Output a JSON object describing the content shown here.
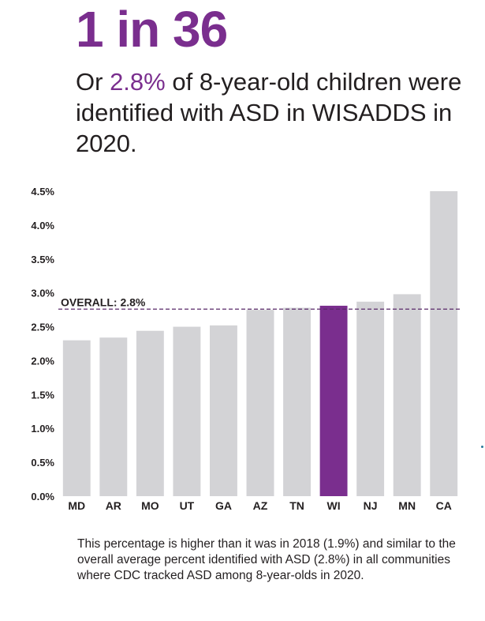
{
  "headline": "1 in 36",
  "subhead": {
    "prefix": "Or ",
    "highlight": "2.8%",
    "suffix": " of 8-year-old children were identified with ASD in WISADDS in 2020."
  },
  "colors": {
    "accent": "#7a2e8e",
    "bar": "#d3d3d6",
    "highlight_bar": "#7a2e8e",
    "text": "#231f20"
  },
  "chart_data": {
    "type": "bar",
    "categories": [
      "MD",
      "AR",
      "MO",
      "UT",
      "GA",
      "AZ",
      "TN",
      "WI",
      "NJ",
      "MN",
      "CA"
    ],
    "values": [
      2.3,
      2.34,
      2.44,
      2.5,
      2.52,
      2.75,
      2.78,
      2.81,
      2.87,
      2.98,
      4.5
    ],
    "highlight_category": "WI",
    "reference_line": {
      "label": "OVERALL: 2.8%",
      "value": 2.76
    },
    "yticks": [
      0,
      0.5,
      1.0,
      1.5,
      2.0,
      2.5,
      3.0,
      3.5,
      4.0,
      4.5
    ],
    "ytick_labels": [
      "0.0%",
      "0.5%",
      "1.0%",
      "1.5%",
      "2.0%",
      "2.5%",
      "3.0%",
      "3.5%",
      "4.0%",
      "4.5%"
    ],
    "ylim": [
      0,
      4.5
    ],
    "title": "",
    "xlabel": "",
    "ylabel": ""
  },
  "caption": "This percentage is higher than it was in 2018 (1.9%) and similar to the overall average percent identified with ASD (2.8%) in all communities where CDC tracked ASD among 8-year-olds in 2020."
}
